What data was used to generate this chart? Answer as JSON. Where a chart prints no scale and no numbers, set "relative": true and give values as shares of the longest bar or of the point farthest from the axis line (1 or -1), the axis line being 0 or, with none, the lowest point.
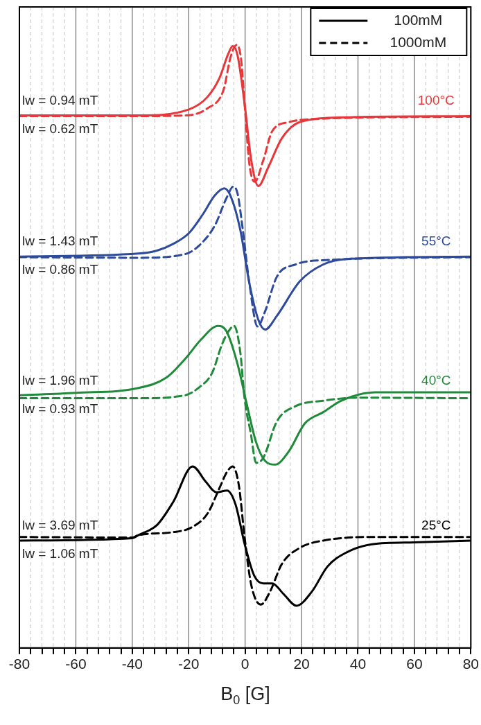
{
  "chart_data": {
    "type": "line",
    "xlabel": "B$_{0}$ [G]",
    "relative": true,
    "grid": "x",
    "legend": "top right",
    "xlim": [
      -80,
      80
    ],
    "xticks": [
      -80,
      {
        "value": -76,
        "label": null
      },
      {
        "value": -72,
        "label": null
      },
      {
        "value": -68,
        "label": null
      },
      {
        "value": -64,
        "label": null
      },
      -60,
      {
        "value": -56,
        "label": null
      },
      {
        "value": -52,
        "label": null
      },
      {
        "value": -48,
        "label": null
      },
      {
        "value": -44,
        "label": null
      },
      -40,
      {
        "value": -36,
        "label": null
      },
      {
        "value": -32,
        "label": null
      },
      {
        "value": -28,
        "label": null
      },
      {
        "value": -24,
        "label": null
      },
      -20,
      {
        "value": -16,
        "label": null
      },
      {
        "value": -12,
        "label": null
      },
      {
        "value": -8,
        "label": null
      },
      {
        "value": -4,
        "label": null
      },
      0,
      {
        "value": 4,
        "label": null
      },
      {
        "value": 8,
        "label": null
      },
      {
        "value": 12,
        "label": null
      },
      {
        "value": 16,
        "label": null
      },
      20,
      {
        "value": 24,
        "label": null
      },
      {
        "value": 28,
        "label": null
      },
      {
        "value": 32,
        "label": null
      },
      {
        "value": 36,
        "label": null
      },
      40,
      {
        "value": 44,
        "label": null
      },
      {
        "value": 48,
        "label": null
      },
      {
        "value": 52,
        "label": null
      },
      {
        "value": 56,
        "label": null
      },
      60,
      {
        "value": 64,
        "label": null
      },
      {
        "value": 68,
        "label": null
      },
      {
        "value": 72,
        "label": null
      },
      {
        "value": 76,
        "label": null
      },
      80
    ],
    "series": [
      {
        "color": "#e8373a",
        "line_style": "solid",
        "x": [
          -80,
          -37.8,
          -19.9,
          -13.3,
          -9.1,
          -5.9,
          -4.4,
          -2.7,
          -0.2,
          2.2,
          4.7,
          8.1,
          13.0,
          19.4,
          35.8,
          80
        ],
        "values": [
          0.883,
          0.883,
          0.893,
          0.914,
          0.945,
          0.986,
          0.998,
          0.983,
          0.903,
          0.808,
          0.766,
          0.796,
          0.845,
          0.872,
          0.88,
          0.882
        ]
      },
      {
        "color": "#e8373a",
        "line_style": "dashed",
        "x": [
          -80,
          -37.8,
          -21.3,
          -13.3,
          -7.6,
          -5.2,
          -3.0,
          -1.5,
          -0.2,
          1.5,
          3.4,
          6.4,
          9.6,
          15.5,
          23.6,
          80
        ],
        "values": [
          0.882,
          0.882,
          0.883,
          0.895,
          0.926,
          0.979,
          1.0,
          0.979,
          0.903,
          0.803,
          0.773,
          0.808,
          0.857,
          0.872,
          0.877,
          0.881
        ]
      },
      {
        "color": "#2e4a9a",
        "line_style": "solid",
        "x": [
          -80,
          -37.8,
          -31.2,
          -25.5,
          -19.9,
          -15.0,
          -10.8,
          -7.4,
          -5.2,
          -1.7,
          1.5,
          4.7,
          7.1,
          11.3,
          19.4,
          27.7,
          35.8,
          80
        ],
        "values": [
          0.649,
          0.654,
          0.659,
          0.67,
          0.688,
          0.719,
          0.75,
          0.762,
          0.75,
          0.693,
          0.605,
          0.544,
          0.528,
          0.551,
          0.608,
          0.636,
          0.645,
          0.649
        ]
      },
      {
        "color": "#2e4a9a",
        "line_style": "dashed",
        "x": [
          -80,
          -37.8,
          -21.3,
          -16.6,
          -10.8,
          -6.6,
          -4.2,
          -2.7,
          -1.0,
          1.5,
          4.4,
          6.9,
          11.3,
          17.9,
          27.7,
          80
        ],
        "values": [
          0.648,
          0.647,
          0.653,
          0.666,
          0.7,
          0.746,
          0.765,
          0.754,
          0.7,
          0.605,
          0.533,
          0.556,
          0.616,
          0.636,
          0.643,
          0.648
        ]
      },
      {
        "color": "#1e8a3a",
        "line_style": "solid",
        "x": [
          -80,
          -60,
          -37.8,
          -28.0,
          -21.3,
          -15.7,
          -9.6,
          -6.6,
          -2.7,
          0.7,
          3.9,
          7.1,
          10.6,
          15.5,
          21.1,
          27.7,
          34.1,
          46,
          60,
          80
        ],
        "values": [
          0.419,
          0.423,
          0.431,
          0.448,
          0.479,
          0.511,
          0.534,
          0.525,
          0.471,
          0.402,
          0.341,
          0.31,
          0.304,
          0.326,
          0.372,
          0.391,
          0.41,
          0.424,
          0.424,
          0.424
        ]
      },
      {
        "color": "#1e8a3a",
        "line_style": "dashed",
        "x": [
          -80,
          -37.8,
          -21.3,
          -16.6,
          -11.7,
          -8.3,
          -5.9,
          -3.9,
          -1.7,
          -0.2,
          2.0,
          3.9,
          6.4,
          11.3,
          17.9,
          27.7,
          40,
          80
        ],
        "values": [
          0.414,
          0.414,
          0.419,
          0.431,
          0.456,
          0.502,
          0.525,
          0.534,
          0.49,
          0.414,
          0.356,
          0.307,
          0.315,
          0.376,
          0.401,
          0.41,
          0.415,
          0.414
        ]
      },
      {
        "name": "100mM",
        "color": "#000000",
        "line_style": "solid",
        "x": [
          -80,
          -40,
          -37.8,
          -31.2,
          -25.5,
          -18.6,
          -14.0,
          -10.1,
          -6.4,
          -3.4,
          -0.2,
          3.2,
          6.4,
          9.6,
          13.7,
          18.2,
          23.6,
          29.2,
          35.8,
          45,
          60,
          80
        ],
        "values": [
          0.178,
          0.182,
          0.187,
          0.204,
          0.242,
          0.301,
          0.276,
          0.258,
          0.261,
          0.238,
          0.173,
          0.12,
          0.107,
          0.107,
          0.089,
          0.07,
          0.093,
          0.135,
          0.158,
          0.172,
          0.175,
          0.178
        ]
      },
      {
        "name": "1000mM",
        "color": "#000000",
        "line_style": "dashed",
        "x": [
          -80,
          -40,
          -37.8,
          -25.5,
          -18.9,
          -13.3,
          -9.1,
          -6.4,
          -4.4,
          -2.2,
          -0.2,
          2.2,
          5.6,
          8.8,
          13.0,
          19.4,
          27.7,
          45,
          80
        ],
        "values": [
          0.184,
          0.183,
          0.187,
          0.192,
          0.2,
          0.223,
          0.265,
          0.292,
          0.301,
          0.269,
          0.184,
          0.104,
          0.072,
          0.093,
          0.139,
          0.166,
          0.178,
          0.184,
          0.184
        ]
      }
    ],
    "annotations": [
      "lw = 0.94 mT",
      "lw = 0.62 mT",
      "100°C",
      "lw = 1.43 mT",
      "lw = 0.86 mT",
      "55°C",
      "lw = 1.96 mT",
      "lw = 0.93 mT",
      "40°C",
      "lw = 3.69 mT",
      "lw = 1.06 mT",
      "25°C"
    ]
  }
}
